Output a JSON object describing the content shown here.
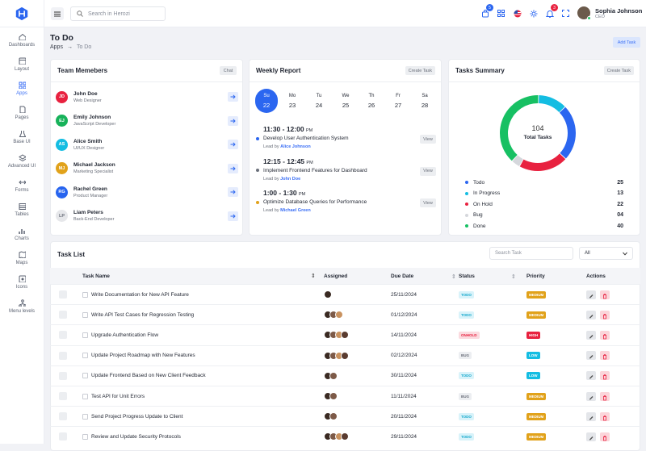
{
  "sidebar": {
    "items": [
      {
        "label": "Dashboards",
        "icon": "home-icon"
      },
      {
        "label": "Layout",
        "icon": "layout-icon"
      },
      {
        "label": "Apps",
        "icon": "apps-icon"
      },
      {
        "label": "Pages",
        "icon": "pages-icon"
      },
      {
        "label": "Base UI",
        "icon": "flask-icon"
      },
      {
        "label": "Advanced UI",
        "icon": "layers-icon"
      },
      {
        "label": "Forms",
        "icon": "forms-icon"
      },
      {
        "label": "Tables",
        "icon": "table-icon"
      },
      {
        "label": "Charts",
        "icon": "chart-icon"
      },
      {
        "label": "Maps",
        "icon": "map-icon"
      },
      {
        "label": "Icons",
        "icon": "icons-icon"
      },
      {
        "label": "Menu levels",
        "icon": "menu-levels-icon"
      }
    ]
  },
  "topbar": {
    "search_placeholder": "Search in Herozi",
    "cart_badge": "5",
    "notif_badge": "3",
    "user_name": "Sophia Johnson",
    "user_role": "CEO"
  },
  "page": {
    "title": "To Do",
    "crumb_parent": "Apps",
    "crumb_current": "To Do",
    "add_task": "Add Task"
  },
  "team": {
    "title": "Team Memebers",
    "chat": "Chat",
    "members": [
      {
        "initials": "JD",
        "name": "John Doe",
        "role": "Web Designer",
        "color": "#e8213f"
      },
      {
        "initials": "EJ",
        "name": "Emily Johnson",
        "role": "JavaScript Developer",
        "color": "#17b25a"
      },
      {
        "initials": "AS",
        "name": "Alice Smith",
        "role": "UI/UX Designer",
        "color": "#14bde2"
      },
      {
        "initials": "MJ",
        "name": "Michael Jackson",
        "role": "Marketing Specialist",
        "color": "#e1a21b"
      },
      {
        "initials": "RG",
        "name": "Rachel Green",
        "role": "Product Manager",
        "color": "#2764ef"
      },
      {
        "initials": "LP",
        "name": "Liam Peters",
        "role": "Back-End Developer",
        "color": "#e6e7ea"
      }
    ]
  },
  "weekly": {
    "title": "Weekly Report",
    "create": "Create Task",
    "days": [
      {
        "d": "Su",
        "n": "22"
      },
      {
        "d": "Mo",
        "n": "23"
      },
      {
        "d": "Tu",
        "n": "24"
      },
      {
        "d": "We",
        "n": "25"
      },
      {
        "d": "Th",
        "n": "26"
      },
      {
        "d": "Fr",
        "n": "27"
      },
      {
        "d": "Sa",
        "n": "28"
      }
    ],
    "events": [
      {
        "time": "11:30 - 12:00",
        "ampm": "PM",
        "title": "Develop User Authentication System",
        "lead": "Lead by",
        "person": "Alice Johnson",
        "color": "#2b66f0",
        "view": "View"
      },
      {
        "time": "12:15 - 12:45",
        "ampm": "PM",
        "title": "Implement Frontend Features for Dashboard",
        "lead": "Lead by",
        "person": "John Doe",
        "color": "#6a6f7a",
        "view": "View"
      },
      {
        "time": "1:00 - 1:30",
        "ampm": "PM",
        "title": "Optimize Database Queries for Performance",
        "lead": "Lead by",
        "person": "Michael Green",
        "color": "#e1a21b",
        "view": "View"
      }
    ]
  },
  "summary": {
    "title": "Tasks Summary",
    "create": "Create Task",
    "total": "104",
    "total_label": "Total Tasks",
    "items": [
      {
        "label": "Todo",
        "value": 25,
        "color": "#2b66f0"
      },
      {
        "label": "In Progress",
        "value": 13,
        "color": "#14bde2"
      },
      {
        "label": "On Hold",
        "value": 22,
        "color": "#e8213f"
      },
      {
        "label": "Bug",
        "value": 4,
        "color": "#d5d7dc"
      },
      {
        "label": "Done",
        "value": 40,
        "color": "#17c063"
      }
    ],
    "value_labels": [
      "25",
      "13",
      "22",
      "04",
      "40"
    ]
  },
  "tasklist": {
    "title": "Task List",
    "search_placeholder": "Search Task",
    "filter": "All",
    "headers": [
      "Task Name",
      "Assigned",
      "Due Date",
      "Status",
      "Priority",
      "Actions"
    ],
    "rows": [
      {
        "name": "Write Documentation for New API Feature",
        "n": 1,
        "due": "25/11/2024",
        "status": "TODO",
        "sc": "#d9f3fa",
        "stc": "#14a8cc",
        "priority": "MEDIUM",
        "pc": "#e1a21b"
      },
      {
        "name": "Write API Test Cases for Regression Testing",
        "n": 3,
        "due": "01/12/2024",
        "status": "TODO",
        "sc": "#d9f3fa",
        "stc": "#14a8cc",
        "priority": "MEDIUM",
        "pc": "#e1a21b"
      },
      {
        "name": "Upgrade Authentication Flow",
        "n": 4,
        "due": "14/11/2024",
        "status": "ONHOLD",
        "sc": "#fbdadf",
        "stc": "#e8213f",
        "priority": "HIGH",
        "pc": "#e8213f"
      },
      {
        "name": "Update Project Roadmap with New Features",
        "n": 4,
        "due": "02/12/2024",
        "status": "BUG",
        "sc": "#eceef1",
        "stc": "#6a6f7a",
        "priority": "LOW",
        "pc": "#14bde2"
      },
      {
        "name": "Update Frontend Based on New Client Feedback",
        "n": 2,
        "due": "30/11/2024",
        "status": "TODO",
        "sc": "#d9f3fa",
        "stc": "#14a8cc",
        "priority": "LOW",
        "pc": "#14bde2"
      },
      {
        "name": "Test API for Unit Errors",
        "n": 2,
        "due": "11/11/2024",
        "status": "BUG",
        "sc": "#eceef1",
        "stc": "#6a6f7a",
        "priority": "MEDIUM",
        "pc": "#e1a21b"
      },
      {
        "name": "Send Project Progress Update to Client",
        "n": 2,
        "due": "20/11/2024",
        "status": "TODO",
        "sc": "#d9f3fa",
        "stc": "#14a8cc",
        "priority": "MEDIUM",
        "pc": "#e1a21b"
      },
      {
        "name": "Review and Update Security Protocols",
        "n": 4,
        "due": "29/11/2024",
        "status": "TODO",
        "sc": "#d9f3fa",
        "stc": "#14a8cc",
        "priority": "MEDIUM",
        "pc": "#e1a21b"
      }
    ]
  }
}
